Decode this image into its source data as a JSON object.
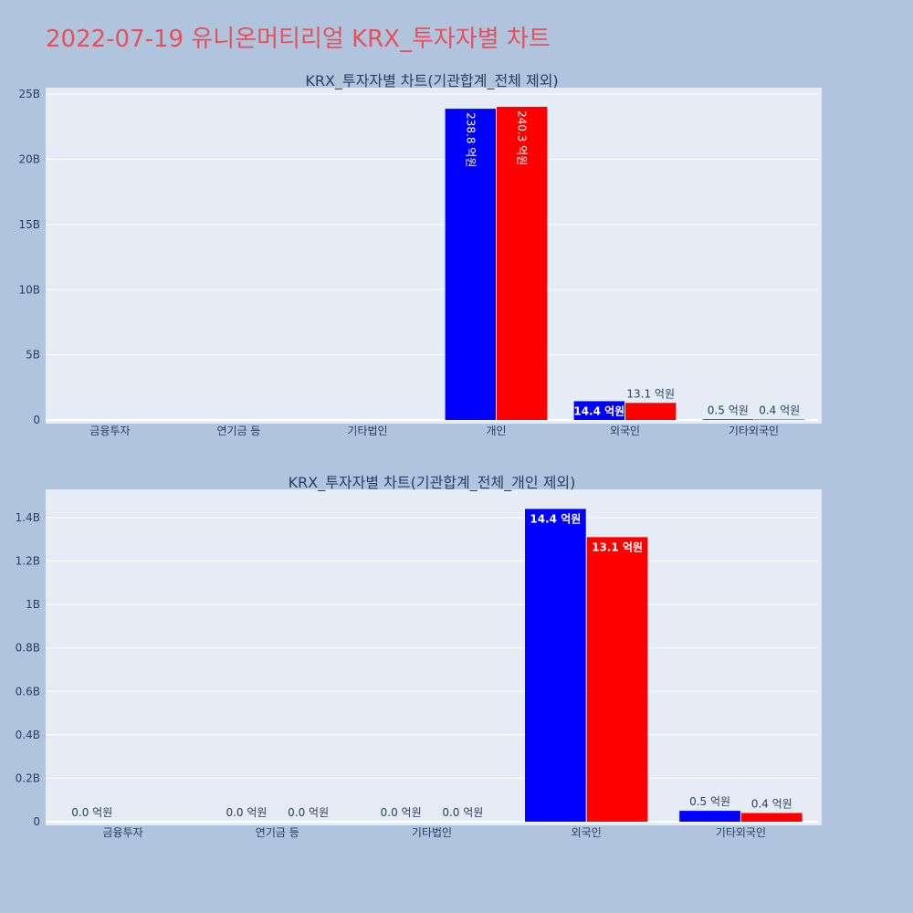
{
  "page": {
    "title": "2022-07-19 유니온머티리얼 KRX_투자자별 차트",
    "background": "#b0c4de",
    "title_color": "#e8505b",
    "plot_background": "#e5ecf6"
  },
  "chart_data": [
    {
      "type": "bar",
      "title": "KRX_투자자별 차트(기관합계_전체 제외)",
      "categories": [
        "금융투자",
        "연기금 등",
        "기타법인",
        "개인",
        "외국인",
        "기타외국인"
      ],
      "ylim": [
        0,
        25500000000
      ],
      "ytick_values": [
        0,
        5000000000,
        10000000000,
        15000000000,
        20000000000,
        25000000000
      ],
      "ytick_labels": [
        "0",
        "5B",
        "10B",
        "15B",
        "20B",
        "25B"
      ],
      "grid": true,
      "legend": "none",
      "series": [
        {
          "color": "#0000ff",
          "values": [
            0,
            0,
            0,
            23880000000,
            1440000000,
            50000000
          ],
          "labels": [
            "",
            "",
            "",
            "238.8 억원",
            "14.4 억원",
            "0.5 억원"
          ],
          "label_modes": [
            "none",
            "none",
            "none",
            "inside-rotated",
            "inside",
            "outside"
          ]
        },
        {
          "color": "#ff0000",
          "values": [
            0,
            0,
            0,
            24030000000,
            1310000000,
            40000000
          ],
          "labels": [
            "",
            "",
            "",
            "240.3 억원",
            "13.1 억원",
            "0.4 억원"
          ],
          "label_modes": [
            "none",
            "none",
            "none",
            "inside-rotated",
            "outside",
            "outside"
          ]
        }
      ]
    },
    {
      "type": "bar",
      "title": "KRX_투자자별 차트(기관합계_전체_개인 제외)",
      "categories": [
        "금융투자",
        "연기금 등",
        "기타법인",
        "외국인",
        "기타외국인"
      ],
      "ylim": [
        0,
        1530000000
      ],
      "ytick_values": [
        0,
        200000000,
        400000000,
        600000000,
        800000000,
        1000000000,
        1200000000,
        1400000000
      ],
      "ytick_labels": [
        "0",
        "0.2B",
        "0.4B",
        "0.6B",
        "0.8B",
        "1B",
        "1.2B",
        "1.4B"
      ],
      "grid": true,
      "legend": "none",
      "series": [
        {
          "color": "#0000ff",
          "values": [
            0,
            0,
            0,
            1440000000,
            50000000
          ],
          "labels": [
            "0.0 억원",
            "0.0 억원",
            "0.0 억원",
            "14.4 억원",
            "0.5 억원"
          ],
          "label_modes": [
            "outside",
            "outside",
            "outside",
            "inside",
            "outside"
          ]
        },
        {
          "color": "#ff0000",
          "values": [
            null,
            0,
            0,
            1310000000,
            40000000
          ],
          "labels": [
            "",
            "0.0 억원",
            "0.0 억원",
            "13.1 억원",
            "0.4 억원"
          ],
          "label_modes": [
            "none",
            "outside",
            "outside",
            "inside",
            "outside"
          ]
        }
      ]
    }
  ]
}
